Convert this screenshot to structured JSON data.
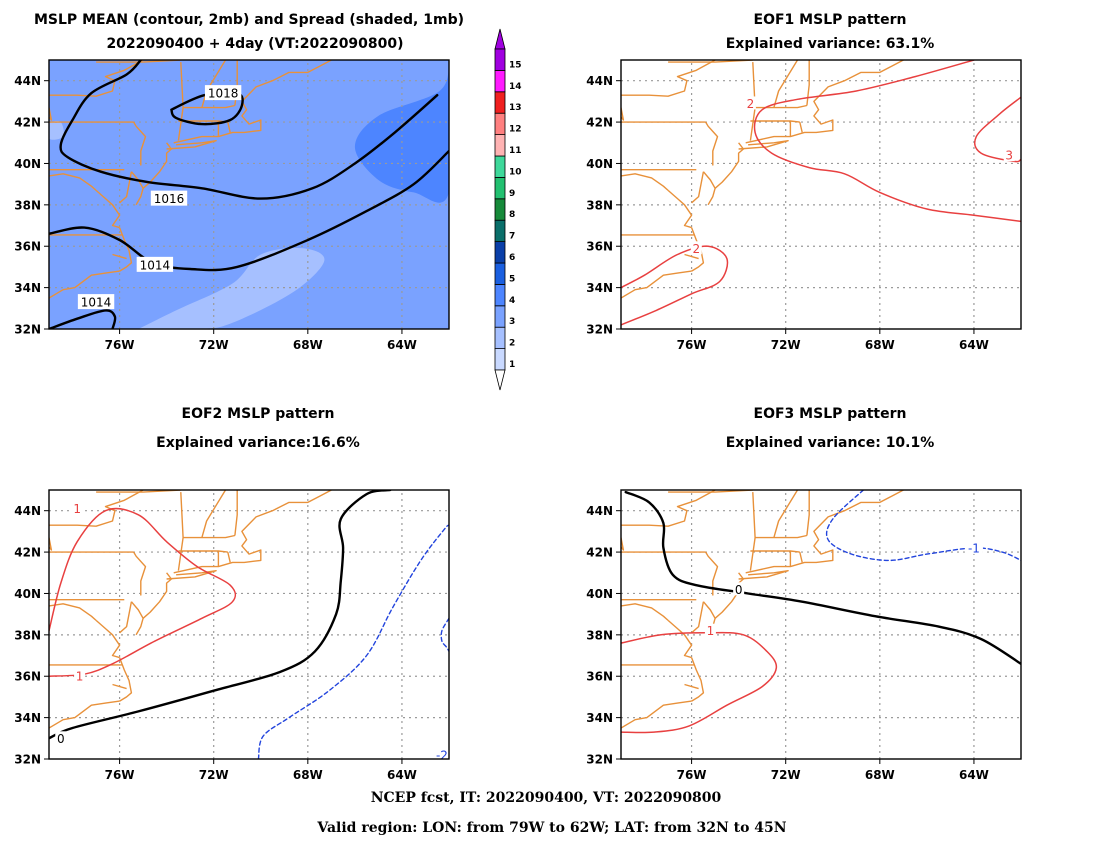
{
  "footer": {
    "line1": "NCEP fcst, IT: 2022090400, VT: 2022090800",
    "line2": "Valid region: LON: from 79W to 62W; LAT: from 32N to 45N"
  },
  "colors": {
    "coast": "#e8913a",
    "positive_contour": "#e84040",
    "negative_contour": "#2244dd",
    "mean_contour": "#000000",
    "grid": "#9a9a9a"
  },
  "colorbar": {
    "levels": [
      "1",
      "2",
      "3",
      "4",
      "5",
      "6",
      "7",
      "8",
      "9",
      "10",
      "11",
      "12",
      "13",
      "14",
      "15"
    ],
    "colors": [
      "#c9d9ff",
      "#a6c0ff",
      "#7aa2ff",
      "#4d85ff",
      "#1a5fe0",
      "#0a3fa8",
      "#0a6f6a",
      "#168a3a",
      "#22c070",
      "#3ed89a",
      "#ffb3b3",
      "#ff8080",
      "#f02020",
      "#ff1aff",
      "#a000e0"
    ]
  },
  "chart_data": [
    {
      "id": "mslp-mean-spread",
      "type": "contour",
      "title": "MSLP MEAN (contour, 2mb) and Spread (shaded, 1mb)",
      "subtitle": "2022090400 + 4day (VT:2022090800)",
      "xlim": [
        -79,
        -62
      ],
      "ylim": [
        32,
        45
      ],
      "x_ticks": [
        "76W",
        "72W",
        "68W",
        "64W"
      ],
      "y_ticks": [
        "44N",
        "42N",
        "40N",
        "38N",
        "36N",
        "34N",
        "32N"
      ],
      "grid": true,
      "contour_labels": [
        "1018",
        "1016",
        "1014",
        "1014"
      ],
      "contours": [
        {
          "value": 1018,
          "color": "mean",
          "points": [
            [
              -73.8,
              42.6
            ],
            [
              -72.4,
              43.3
            ],
            [
              -71.0,
              43.4
            ],
            [
              -70.8,
              42.8
            ],
            [
              -71.3,
              42.1
            ],
            [
              -72.5,
              41.9
            ],
            [
              -73.6,
              42.2
            ],
            [
              -73.8,
              42.6
            ]
          ]
        },
        {
          "value": 1016,
          "color": "mean",
          "points": [
            [
              -75.1,
              45.0
            ],
            [
              -75.7,
              44.3
            ],
            [
              -77.2,
              43.4
            ],
            [
              -78.0,
              42.1
            ],
            [
              -78.5,
              40.9
            ],
            [
              -78.2,
              40.3
            ],
            [
              -76.8,
              39.6
            ],
            [
              -74.8,
              39.1
            ],
            [
              -72.5,
              38.8
            ],
            [
              -70.0,
              38.3
            ],
            [
              -67.8,
              38.8
            ],
            [
              -66.0,
              40.0
            ],
            [
              -64.3,
              41.5
            ],
            [
              -62.5,
              43.3
            ]
          ]
        },
        {
          "value": 1014,
          "color": "mean",
          "points": [
            [
              -79.0,
              36.6
            ],
            [
              -77.5,
              36.9
            ],
            [
              -76.0,
              36.3
            ],
            [
              -74.6,
              35.2
            ],
            [
              -73.0,
              34.9
            ],
            [
              -71.0,
              35.0
            ],
            [
              -68.0,
              36.3
            ],
            [
              -65.5,
              37.7
            ],
            [
              -63.5,
              39.0
            ],
            [
              -62.0,
              40.6
            ]
          ]
        },
        {
          "value": 1014,
          "color": "mean",
          "points": [
            [
              -79.0,
              32.0
            ],
            [
              -77.8,
              32.5
            ],
            [
              -76.6,
              32.9
            ],
            [
              -76.2,
              32.6
            ],
            [
              -76.3,
              32.0
            ]
          ]
        }
      ],
      "shading": [
        {
          "level": 4,
          "points": [
            [
              -62,
              45
            ],
            [
              -62.4,
              43.5
            ],
            [
              -65.0,
              42.3
            ],
            [
              -66.0,
              40.8
            ],
            [
              -65.0,
              39.2
            ],
            [
              -63.5,
              38.6
            ],
            [
              -62,
              38.6
            ]
          ]
        },
        {
          "level": 2,
          "points": [
            [
              -75.2,
              32
            ],
            [
              -73.6,
              32.9
            ],
            [
              -71.2,
              34.2
            ],
            [
              -70.0,
              35.6
            ],
            [
              -68.2,
              35.9
            ],
            [
              -67.3,
              35.3
            ],
            [
              -68.6,
              33.8
            ],
            [
              -71.2,
              32.3
            ],
            [
              -72.6,
              32
            ]
          ]
        },
        {
          "level": 2,
          "points": [
            [
              -79,
              42
            ],
            [
              -78.5,
              42.0
            ],
            [
              -78.4,
              41.3
            ],
            [
              -79,
              41.2
            ]
          ]
        }
      ]
    },
    {
      "id": "eof1",
      "type": "contour",
      "title": "EOF1 MSLP pattern",
      "subtitle": "Explained variance: 63.1%",
      "xlim": [
        -79,
        -62
      ],
      "ylim": [
        32,
        45
      ],
      "x_ticks": [
        "76W",
        "72W",
        "68W",
        "64W"
      ],
      "y_ticks": [
        "44N",
        "42N",
        "40N",
        "38N",
        "36N",
        "34N",
        "32N"
      ],
      "grid": true,
      "contour_labels": [
        "2",
        "2",
        "3"
      ],
      "contours": [
        {
          "value": 2,
          "color": "pos",
          "points": [
            [
              -64.0,
              45.0
            ],
            [
              -66.5,
              44.2
            ],
            [
              -69.0,
              43.5
            ],
            [
              -71.5,
              43.1
            ],
            [
              -73.0,
              42.6
            ],
            [
              -73.3,
              41.5
            ],
            [
              -72.6,
              40.5
            ],
            [
              -71.0,
              39.8
            ],
            [
              -69.5,
              39.5
            ],
            [
              -68.0,
              38.6
            ],
            [
              -66.0,
              37.8
            ],
            [
              -64.0,
              37.5
            ],
            [
              -62.0,
              37.2
            ]
          ]
        },
        {
          "value": 2,
          "color": "pos",
          "points": [
            [
              -79.0,
              32.2
            ],
            [
              -77.5,
              32.9
            ],
            [
              -76.0,
              33.7
            ],
            [
              -74.8,
              34.3
            ],
            [
              -74.5,
              35.4
            ],
            [
              -75.3,
              36.0
            ],
            [
              -76.6,
              35.6
            ],
            [
              -78.0,
              34.6
            ],
            [
              -79.0,
              34.0
            ]
          ]
        },
        {
          "value": 3,
          "color": "pos",
          "points": [
            [
              -62.0,
              43.2
            ],
            [
              -62.9,
              42.4
            ],
            [
              -63.9,
              41.3
            ],
            [
              -63.7,
              40.5
            ],
            [
              -62.3,
              40.1
            ],
            [
              -62.0,
              40.2
            ]
          ]
        }
      ]
    },
    {
      "id": "eof2",
      "type": "contour",
      "title": "EOF2 MSLP pattern",
      "subtitle": "Explained variance:16.6%",
      "xlim": [
        -79,
        -62
      ],
      "ylim": [
        32,
        45
      ],
      "x_ticks": [
        "76W",
        "72W",
        "68W",
        "64W"
      ],
      "y_ticks": [
        "44N",
        "42N",
        "40N",
        "38N",
        "36N",
        "34N",
        "32N"
      ],
      "grid": true,
      "contour_labels": [
        "1",
        "1",
        "0",
        "-2"
      ],
      "contours": [
        {
          "value": 1,
          "color": "pos",
          "points": [
            [
              -79.0,
              38.2
            ],
            [
              -78.5,
              40.5
            ],
            [
              -77.8,
              42.5
            ],
            [
              -76.6,
              44.0
            ],
            [
              -75.2,
              43.8
            ],
            [
              -74.0,
              42.5
            ],
            [
              -72.7,
              41.3
            ],
            [
              -71.3,
              40.4
            ],
            [
              -71.2,
              39.6
            ],
            [
              -72.5,
              38.8
            ],
            [
              -74.5,
              37.7
            ],
            [
              -76.3,
              36.6
            ],
            [
              -77.5,
              36.1
            ],
            [
              -79.0,
              36.0
            ]
          ]
        },
        {
          "value": 0,
          "color": "mean",
          "points": [
            [
              -79.0,
              33.0
            ],
            [
              -78.0,
              33.5
            ],
            [
              -75.2,
              34.3
            ],
            [
              -72.0,
              35.3
            ],
            [
              -69.2,
              36.2
            ],
            [
              -67.7,
              37.2
            ],
            [
              -66.8,
              39.0
            ],
            [
              -66.6,
              40.6
            ],
            [
              -66.5,
              42.2
            ],
            [
              -66.6,
              43.6
            ],
            [
              -65.5,
              44.8
            ],
            [
              -64.5,
              45.0
            ]
          ]
        },
        {
          "value": -2,
          "color": "neg",
          "points": [
            [
              -70.1,
              32.0
            ],
            [
              -69.9,
              33.1
            ],
            [
              -68.8,
              34.0
            ],
            [
              -67.1,
              35.3
            ],
            [
              -65.5,
              37.0
            ],
            [
              -64.4,
              39.3
            ],
            [
              -63.2,
              41.6
            ],
            [
              -62.2,
              43.1
            ],
            [
              -62.0,
              43.3
            ]
          ]
        },
        {
          "value": -2,
          "color": "neg",
          "points": [
            [
              -62.0,
              38.8
            ],
            [
              -62.3,
              38.2
            ],
            [
              -62.3,
              37.7
            ],
            [
              -62.1,
              37.4
            ],
            [
              -62.0,
              37.2
            ]
          ]
        }
      ]
    },
    {
      "id": "eof3",
      "type": "contour",
      "title": "EOF3 MSLP pattern",
      "subtitle": "Explained variance: 10.1%",
      "xlim": [
        -79,
        -62
      ],
      "ylim": [
        32,
        45
      ],
      "x_ticks": [
        "76W",
        "72W",
        "68W",
        "64W"
      ],
      "y_ticks": [
        "44N",
        "42N",
        "40N",
        "38N",
        "36N",
        "34N",
        "32N"
      ],
      "grid": true,
      "contour_labels": [
        "0",
        "1",
        "-1"
      ],
      "contours": [
        {
          "value": 0,
          "color": "mean",
          "points": [
            [
              -78.8,
              44.9
            ],
            [
              -77.8,
              44.4
            ],
            [
              -77.2,
              43.4
            ],
            [
              -77.2,
              42.2
            ],
            [
              -76.8,
              40.9
            ],
            [
              -75.8,
              40.4
            ],
            [
              -73.6,
              40.0
            ],
            [
              -71.3,
              39.6
            ],
            [
              -68.2,
              38.9
            ],
            [
              -65.5,
              38.4
            ],
            [
              -63.7,
              37.8
            ],
            [
              -62.0,
              36.6
            ]
          ]
        },
        {
          "value": 1,
          "color": "pos",
          "points": [
            [
              -79.0,
              37.6
            ],
            [
              -77.3,
              38.0
            ],
            [
              -75.4,
              38.1
            ],
            [
              -73.8,
              38.0
            ],
            [
              -72.8,
              37.2
            ],
            [
              -72.4,
              36.4
            ],
            [
              -73.0,
              35.5
            ],
            [
              -74.5,
              34.6
            ],
            [
              -76.1,
              33.6
            ],
            [
              -77.6,
              33.3
            ],
            [
              -79.0,
              33.3
            ]
          ]
        },
        {
          "value": -1,
          "color": "neg",
          "points": [
            [
              -68.7,
              45.0
            ],
            [
              -70.0,
              43.6
            ],
            [
              -70.2,
              42.6
            ],
            [
              -69.2,
              41.9
            ],
            [
              -67.6,
              41.6
            ],
            [
              -66.0,
              41.9
            ],
            [
              -64.0,
              42.2
            ],
            [
              -62.8,
              42.0
            ],
            [
              -62.0,
              41.6
            ]
          ]
        }
      ]
    }
  ]
}
